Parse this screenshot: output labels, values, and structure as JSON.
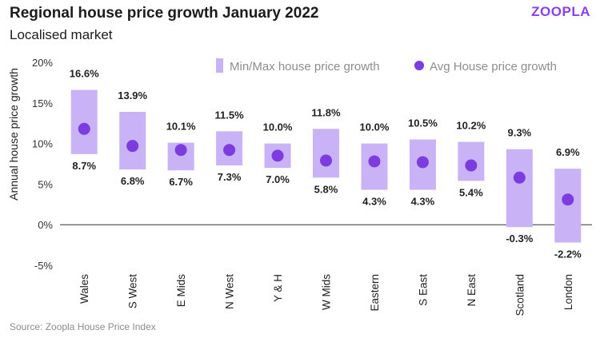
{
  "header": {
    "title": "Regional house price growth January 2022",
    "subtitle": "Localised market",
    "brand": "ZOOPLA"
  },
  "footer": {
    "source": "Source: Zoopla  House Price Index"
  },
  "colors": {
    "range_fill": "#c9b3f6",
    "avg_dot": "#7c3ce0",
    "zero_line": "#333333",
    "brand": "#8a3ff0"
  },
  "chart_data": {
    "type": "range-dot",
    "title": "Regional house price growth January 2022",
    "subtitle": "Localised market",
    "ylabel": "Annual house price growth",
    "xlabel": "",
    "ylim": [
      -5,
      20
    ],
    "yticks": [
      -5,
      0,
      5,
      10,
      15,
      20
    ],
    "ytick_labels": [
      "-5%",
      "0%",
      "5%",
      "10%",
      "15%",
      "20%"
    ],
    "grid": false,
    "legend": {
      "position": "top-right",
      "entries": [
        "Min/Max house price growth",
        "Avg House price growth"
      ]
    },
    "categories": [
      "Wales",
      "S West",
      "E Mids",
      "N West",
      "Y & H",
      "W Mids",
      "Eastern",
      "S East",
      "N East",
      "Scotland",
      "London"
    ],
    "series": [
      {
        "name": "Max",
        "values": [
          16.6,
          13.9,
          10.1,
          11.5,
          10.0,
          11.8,
          10.0,
          10.5,
          10.2,
          9.3,
          6.9
        ]
      },
      {
        "name": "Min",
        "values": [
          8.7,
          6.8,
          6.7,
          7.3,
          7.0,
          5.8,
          4.3,
          4.3,
          5.4,
          -0.3,
          -2.2
        ]
      },
      {
        "name": "Avg House price growth",
        "values": [
          11.8,
          9.7,
          9.2,
          9.2,
          8.5,
          7.9,
          7.8,
          7.7,
          7.3,
          5.8,
          3.1
        ]
      }
    ],
    "max_labels": [
      "16.6%",
      "13.9%",
      "10.1%",
      "11.5%",
      "10.0%",
      "11.8%",
      "10.0%",
      "10.5%",
      "10.2%",
      "9.3%",
      "6.9%"
    ],
    "min_labels": [
      "8.7%",
      "6.8%",
      "6.7%",
      "7.3%",
      "7.0%",
      "5.8%",
      "4.3%",
      "4.3%",
      "5.4%",
      "-0.3%",
      "-2.2%"
    ]
  }
}
